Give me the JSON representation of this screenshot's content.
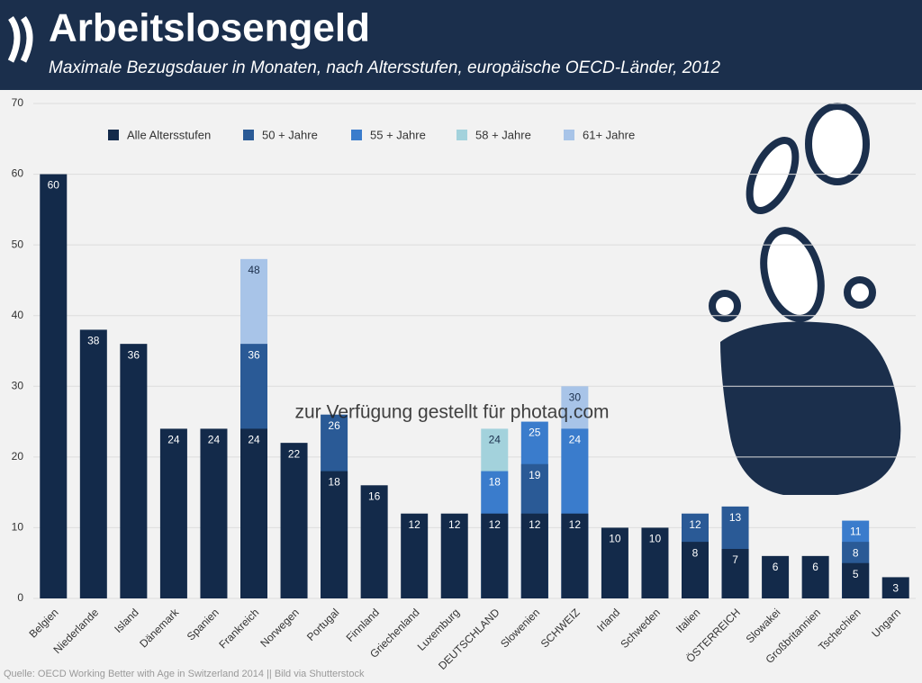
{
  "chart_data": {
    "type": "bar",
    "title": "Arbeitslosengeld",
    "subtitle": "Maximale Bezugsdauer in Monaten, nach Altersstufen, europäische OECD-Länder, 2012",
    "source": "Quelle: OECD Working Better with Age in Switzerland 2014 || Bild via Shutterstock",
    "watermark": "zur Verfügung gestellt für photaq.com",
    "categories": [
      "Belgien",
      "Niederlande",
      "Island",
      "Dänemark",
      "Spanien",
      "Frankreich",
      "Norwegen",
      "Portugal",
      "Finnland",
      "Griechenland",
      "Luxemburg",
      "DEUTSCHLAND",
      "Slowenien",
      "SCHWEIZ",
      "Irland",
      "Schweden",
      "Italien",
      "ÖSTERREICH",
      "Slowakei",
      "Großbritannien",
      "Tschechien",
      "Ungarn"
    ],
    "series": [
      {
        "name": "Alle Altersstufen",
        "color": "#132a4a",
        "values": [
          60,
          38,
          36,
          24,
          24,
          24,
          22,
          18,
          16,
          12,
          12,
          12,
          12,
          12,
          10,
          10,
          8,
          7,
          6,
          6,
          5,
          3
        ]
      },
      {
        "name": "50 + Jahre",
        "color": "#2a5a96",
        "values": [
          null,
          null,
          null,
          null,
          null,
          36,
          null,
          26,
          null,
          null,
          null,
          null,
          19,
          null,
          null,
          null,
          12,
          13,
          null,
          null,
          8,
          null
        ]
      },
      {
        "name": "55 + Jahre",
        "color": "#3a7ccc",
        "values": [
          null,
          null,
          null,
          null,
          null,
          null,
          null,
          null,
          null,
          null,
          null,
          18,
          25,
          24,
          null,
          null,
          null,
          null,
          null,
          null,
          11,
          null
        ]
      },
      {
        "name": "58 + Jahre",
        "color": "#a3d2dc",
        "values": [
          null,
          null,
          null,
          null,
          null,
          null,
          null,
          null,
          null,
          null,
          null,
          24,
          null,
          null,
          null,
          null,
          null,
          null,
          null,
          null,
          null,
          null
        ]
      },
      {
        "name": "61+ Jahre",
        "color": "#a8c4e8",
        "values": [
          null,
          null,
          null,
          null,
          null,
          48,
          null,
          null,
          null,
          null,
          null,
          null,
          null,
          30,
          null,
          null,
          null,
          null,
          null,
          null,
          null,
          null
        ]
      }
    ],
    "ylim": [
      0,
      70
    ],
    "yticks": [
      0,
      10,
      20,
      30,
      40,
      50,
      60,
      70
    ],
    "grid": true
  }
}
